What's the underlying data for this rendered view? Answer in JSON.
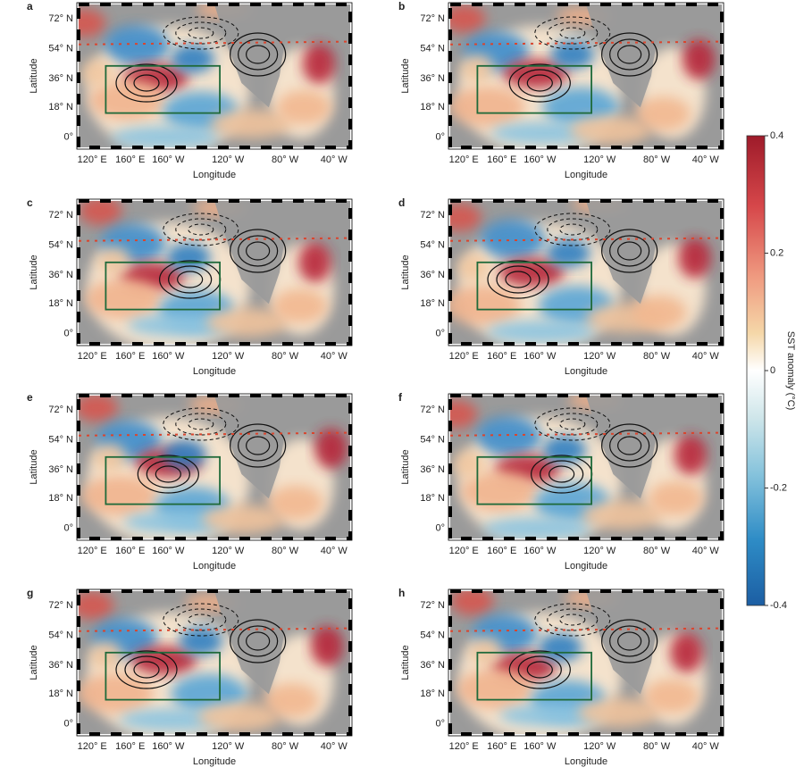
{
  "panels": [
    "a",
    "b",
    "c",
    "d",
    "e",
    "f",
    "g",
    "h"
  ],
  "xticks": [
    "120° E",
    "160° E",
    "160° W",
    "120° W",
    "80° W",
    "40° W"
  ],
  "yticks": [
    "72° N",
    "54° N",
    "36° N",
    "18° N",
    "0°"
  ],
  "xlabel": "Longitude",
  "ylabel": "Latitude",
  "colorbar": {
    "label": "SST anomaly (°C)",
    "lim": [
      -0.4,
      0.4
    ],
    "ticks": [
      -0.4,
      -0.2,
      0,
      0.2,
      0.4
    ]
  }
}
